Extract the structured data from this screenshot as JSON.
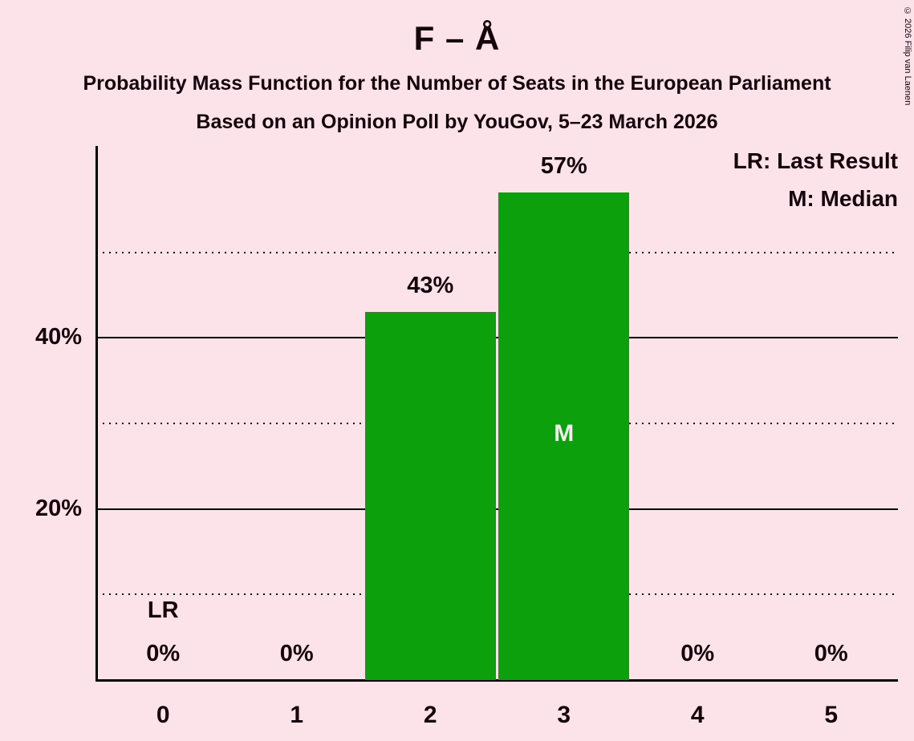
{
  "header": {
    "title": "F – Å",
    "subtitle1": "Probability Mass Function for the Number of Seats in the European Parliament",
    "subtitle2": "Based on an Opinion Poll by YouGov, 5–23 March 2026"
  },
  "copyright": "© 2026 Filip van Laenen",
  "legend": {
    "last_result": "LR: Last Result",
    "median": "M: Median"
  },
  "colors": {
    "background": "#fce3ea",
    "text": "#16040c",
    "bar": "#0ca00c",
    "inside_label": "#f4ecef",
    "axis": "#000000"
  },
  "chart_data": {
    "type": "bar",
    "title": "F – Å",
    "categories": [
      "0",
      "1",
      "2",
      "3",
      "4",
      "5"
    ],
    "values": [
      0,
      0,
      43,
      57,
      0,
      0
    ],
    "value_labels": [
      "0%",
      "0%",
      "43%",
      "57%",
      "0%",
      "0%"
    ],
    "annotations": [
      {
        "category": "0",
        "text": "LR",
        "meaning": "Last Result",
        "position": "above-label"
      },
      {
        "category": "3",
        "text": "M",
        "meaning": "Median",
        "position": "inside-bar"
      }
    ],
    "ylim": [
      0,
      62
    ],
    "yticks": [
      {
        "percent": 20,
        "label": "20%"
      },
      {
        "percent": 40,
        "label": "40%"
      }
    ],
    "gridlines": [
      {
        "percent": 10,
        "style": "dotted"
      },
      {
        "percent": 20,
        "style": "solid"
      },
      {
        "percent": 30,
        "style": "dotted"
      },
      {
        "percent": 40,
        "style": "solid"
      },
      {
        "percent": 50,
        "style": "dotted"
      }
    ],
    "grid": true,
    "legend_position": "top-right"
  }
}
